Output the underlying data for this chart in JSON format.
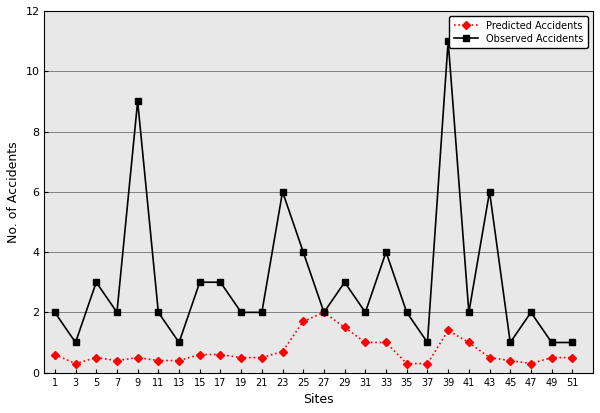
{
  "sites": [
    1,
    3,
    5,
    7,
    9,
    11,
    13,
    15,
    17,
    19,
    21,
    23,
    25,
    27,
    29,
    31,
    33,
    35,
    37,
    39,
    41,
    43,
    45,
    47,
    49,
    51
  ],
  "observed": [
    2,
    1,
    3,
    2,
    9,
    2,
    1,
    3,
    3,
    2,
    2,
    6,
    4,
    2,
    3,
    2,
    4,
    2,
    1,
    11,
    2,
    6,
    1,
    2,
    1,
    1
  ],
  "predicted": [
    0.6,
    0.3,
    0.5,
    0.4,
    0.5,
    0.4,
    0.4,
    0.6,
    0.6,
    0.5,
    0.5,
    0.7,
    1.7,
    2.0,
    1.5,
    1.0,
    1.0,
    0.3,
    0.3,
    1.4,
    1.0,
    0.5,
    0.4,
    0.3,
    0.5,
    0.5
  ],
  "xlabel": "Sites",
  "ylabel": "No. of Accidents",
  "ylim": [
    0,
    12
  ],
  "yticks": [
    0,
    2,
    4,
    6,
    8,
    10,
    12
  ],
  "xticks": [
    1,
    3,
    5,
    7,
    9,
    11,
    13,
    15,
    17,
    19,
    21,
    23,
    25,
    27,
    29,
    31,
    33,
    35,
    37,
    39,
    41,
    43,
    45,
    47,
    49,
    51
  ],
  "observed_color": "#000000",
  "predicted_color": "#ff0000",
  "observed_label": "Observed Accidents",
  "predicted_label": "Predicted Accidents",
  "grid_color": "#808080",
  "background_color": "#ffffff",
  "plot_bg_color": "#e8e8e8",
  "legend_border_color": "#000000",
  "xlim_left": 0,
  "xlim_right": 53
}
